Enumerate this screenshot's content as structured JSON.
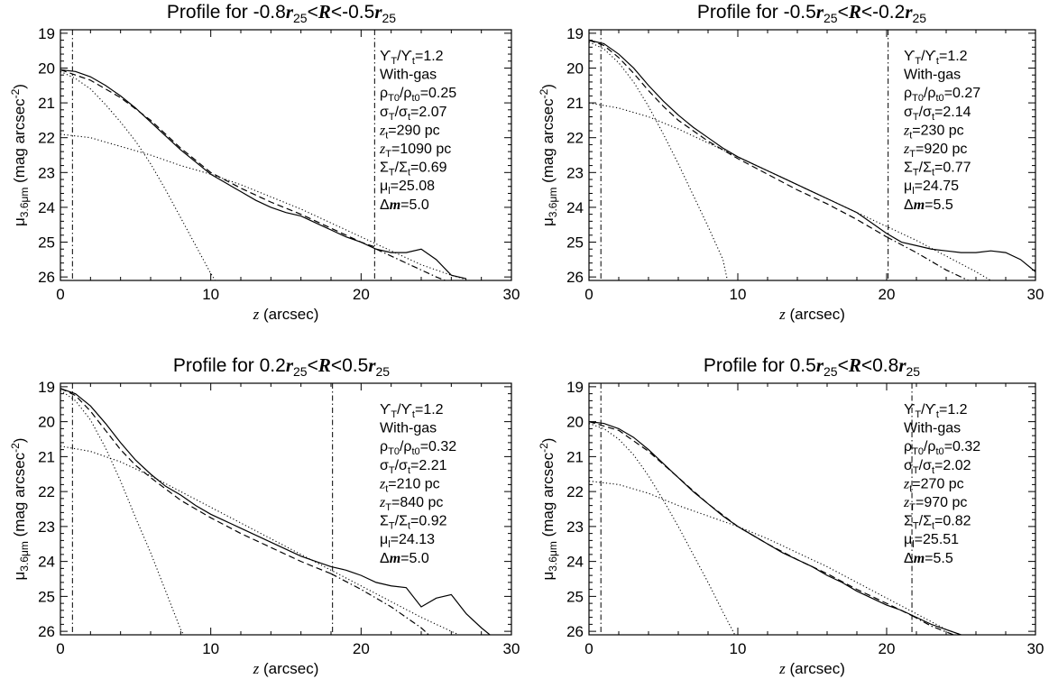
{
  "chart_data": [
    {
      "type": "line",
      "title": "Profile for -0.8r25<R<-0.5r25",
      "title_parts": [
        "Profile for -0.8",
        "r",
        "25",
        "<",
        "R",
        "<-0.5",
        "r",
        "25"
      ],
      "xlabel": "z (arcsec)",
      "xlabel_parts": [
        "z",
        " (arcsec)"
      ],
      "ylabel": "μ3.6μm (mag arcsec-2)",
      "ylabel_parts": [
        "μ",
        "3.6μm",
        " (mag arcsec",
        "-2",
        ")"
      ],
      "xlim": [
        0,
        30
      ],
      "ylim": [
        26.1,
        18.9
      ],
      "y_inverted": true,
      "xticks": [
        "0",
        "10",
        "20",
        "30"
      ],
      "yticks": [
        "19",
        "20",
        "21",
        "22",
        "23",
        "24",
        "25",
        "26"
      ],
      "vlines": [
        0.8,
        20.9
      ],
      "annotations": [
        {
          "parts": [
            "ϒ",
            "T",
            "/ϒ",
            "t",
            "=1.2"
          ]
        },
        {
          "parts": [
            "With-gas"
          ]
        },
        {
          "parts": [
            "ρ",
            "T0",
            "/ρ",
            "t0",
            "=0.25"
          ]
        },
        {
          "parts": [
            "σ",
            "T",
            "/σ",
            "t",
            "=2.07"
          ]
        },
        {
          "parts": [
            "z",
            "t",
            "=290 pc"
          ]
        },
        {
          "parts": [
            "z",
            "T",
            "=1090 pc"
          ]
        },
        {
          "parts": [
            "Σ",
            "T",
            "/Σ",
            "t",
            "=0.69"
          ]
        },
        {
          "parts": [
            "μ",
            "l",
            "=25.08"
          ]
        },
        {
          "parts": [
            "Δ",
            "m",
            "=5.0"
          ]
        }
      ],
      "series": [
        {
          "style": "solid",
          "x": [
            0,
            1,
            2,
            3,
            4,
            5,
            6,
            7,
            8,
            9,
            10,
            11,
            12,
            13,
            14,
            15,
            16,
            17,
            18,
            19,
            20,
            21,
            22,
            23,
            24,
            25,
            26,
            27
          ],
          "y": [
            20.05,
            20.1,
            20.25,
            20.5,
            20.8,
            21.15,
            21.55,
            21.95,
            22.35,
            22.7,
            23.05,
            23.3,
            23.55,
            23.8,
            24.0,
            24.15,
            24.25,
            24.45,
            24.65,
            24.85,
            25.0,
            25.2,
            25.3,
            25.3,
            25.2,
            25.5,
            25.95,
            26.05
          ]
        },
        {
          "style": "dashed",
          "x": [
            0,
            2,
            4,
            6,
            8,
            10,
            12,
            14,
            16,
            18,
            20,
            21
          ],
          "y": [
            20.05,
            20.35,
            20.85,
            21.5,
            22.3,
            23.0,
            23.45,
            23.85,
            24.2,
            24.6,
            25.0,
            25.15
          ]
        },
        {
          "style": "dashdot",
          "x": [
            21,
            23,
            25,
            25.6
          ],
          "y": [
            25.2,
            25.6,
            26.0,
            26.1
          ]
        },
        {
          "style": "dotted",
          "x": [
            0,
            1,
            2,
            3,
            4,
            5,
            6,
            7,
            8,
            9,
            10,
            10.3
          ],
          "y": [
            20.1,
            20.3,
            20.6,
            21.05,
            21.55,
            22.1,
            22.75,
            23.5,
            24.3,
            25.1,
            25.9,
            26.1
          ]
        },
        {
          "style": "dotted",
          "x": [
            0,
            2,
            4,
            6,
            8,
            10,
            12,
            14,
            16,
            18,
            20,
            22,
            24,
            26,
            27.2
          ],
          "y": [
            21.9,
            22.0,
            22.25,
            22.5,
            22.8,
            23.05,
            23.35,
            23.7,
            24.05,
            24.45,
            24.85,
            25.25,
            25.65,
            25.95,
            26.1
          ]
        }
      ]
    },
    {
      "type": "line",
      "title": "Profile for -0.5r25<R<-0.2r25",
      "title_parts": [
        "Profile for -0.5",
        "r",
        "25",
        "<",
        "R",
        "<-0.2",
        "r",
        "25"
      ],
      "xlabel": "z (arcsec)",
      "xlabel_parts": [
        "z",
        " (arcsec)"
      ],
      "ylabel": "μ3.6μm (mag arcsec-2)",
      "ylabel_parts": [
        "μ",
        "3.6μm",
        " (mag arcsec",
        "-2",
        ")"
      ],
      "xlim": [
        0,
        30
      ],
      "ylim": [
        26.1,
        18.9
      ],
      "y_inverted": true,
      "xticks": [
        "0",
        "10",
        "20",
        "30"
      ],
      "yticks": [
        "19",
        "20",
        "21",
        "22",
        "23",
        "24",
        "25",
        "26"
      ],
      "vlines": [
        0.8,
        20.1
      ],
      "annotations": [
        {
          "parts": [
            "ϒ",
            "T",
            "/ϒ",
            "t",
            "=1.2"
          ]
        },
        {
          "parts": [
            "With-gas"
          ]
        },
        {
          "parts": [
            "ρ",
            "T0",
            "/ρ",
            "t0",
            "=0.27"
          ]
        },
        {
          "parts": [
            "σ",
            "T",
            "/σ",
            "t",
            "=2.14"
          ]
        },
        {
          "parts": [
            "z",
            "t",
            "=230 pc"
          ]
        },
        {
          "parts": [
            "z",
            "T",
            "=920 pc"
          ]
        },
        {
          "parts": [
            "Σ",
            "T",
            "/Σ",
            "t",
            "=0.77"
          ]
        },
        {
          "parts": [
            "μ",
            "l",
            "=24.75"
          ]
        },
        {
          "parts": [
            "Δ",
            "m",
            "=5.5"
          ]
        }
      ],
      "series": [
        {
          "style": "solid",
          "x": [
            0,
            1,
            2,
            3,
            4,
            5,
            6,
            7,
            8,
            9,
            10,
            11,
            12,
            13,
            14,
            15,
            16,
            17,
            18,
            19,
            20,
            21,
            22,
            23,
            24,
            25,
            26,
            27,
            28,
            29,
            30
          ],
          "y": [
            19.2,
            19.3,
            19.6,
            20.0,
            20.5,
            20.95,
            21.35,
            21.7,
            22.0,
            22.3,
            22.55,
            22.75,
            22.95,
            23.15,
            23.35,
            23.55,
            23.75,
            23.95,
            24.15,
            24.45,
            24.75,
            25.0,
            25.1,
            25.2,
            25.25,
            25.3,
            25.3,
            25.25,
            25.3,
            25.5,
            25.85
          ]
        },
        {
          "style": "dashed",
          "x": [
            0,
            1,
            2,
            3,
            4,
            5,
            6,
            8,
            10,
            12,
            14,
            16,
            18,
            20
          ],
          "y": [
            19.2,
            19.35,
            19.7,
            20.15,
            20.65,
            21.1,
            21.5,
            22.1,
            22.6,
            23.05,
            23.5,
            23.9,
            24.35,
            24.85
          ]
        },
        {
          "style": "dashdot",
          "x": [
            20,
            22,
            24,
            25.5
          ],
          "y": [
            24.85,
            25.3,
            25.8,
            26.1
          ]
        },
        {
          "style": "dotted",
          "x": [
            0,
            1,
            2,
            3,
            4,
            5,
            6,
            7,
            8,
            9,
            9.3
          ],
          "y": [
            19.25,
            19.45,
            19.85,
            20.4,
            21.1,
            21.9,
            22.75,
            23.65,
            24.55,
            25.5,
            26.1
          ]
        },
        {
          "style": "dotted",
          "x": [
            0,
            2,
            4,
            6,
            8,
            10,
            12,
            14,
            16,
            18,
            20,
            22,
            24,
            26,
            27
          ],
          "y": [
            21.0,
            21.15,
            21.4,
            21.75,
            22.15,
            22.55,
            22.95,
            23.35,
            23.75,
            24.15,
            24.55,
            24.95,
            25.4,
            25.85,
            26.1
          ]
        }
      ]
    },
    {
      "type": "line",
      "title": "Profile for 0.2r25<R<0.5r25",
      "title_parts": [
        "Profile for 0.2",
        "r",
        "25",
        "<",
        "R",
        "<0.5",
        "r",
        "25"
      ],
      "xlabel": "z (arcsec)",
      "xlabel_parts": [
        "z",
        " (arcsec)"
      ],
      "ylabel": "μ3.6μm (mag arcsec-2)",
      "ylabel_parts": [
        "μ",
        "3.6μm",
        " (mag arcsec",
        "-2",
        ")"
      ],
      "xlim": [
        0,
        30
      ],
      "ylim": [
        26.1,
        18.9
      ],
      "y_inverted": true,
      "xticks": [
        "0",
        "10",
        "20",
        "30"
      ],
      "yticks": [
        "19",
        "20",
        "21",
        "22",
        "23",
        "24",
        "25",
        "26"
      ],
      "vlines": [
        0.8,
        18.1
      ],
      "annotations": [
        {
          "parts": [
            "ϒ",
            "T",
            "/ϒ",
            "t",
            "=1.2"
          ]
        },
        {
          "parts": [
            "With-gas"
          ]
        },
        {
          "parts": [
            "ρ",
            "T0",
            "/ρ",
            "t0",
            "=0.32"
          ]
        },
        {
          "parts": [
            "σ",
            "T",
            "/σ",
            "t",
            "=2.21"
          ]
        },
        {
          "parts": [
            "z",
            "t",
            "=210 pc"
          ]
        },
        {
          "parts": [
            "z",
            "T",
            "=840 pc"
          ]
        },
        {
          "parts": [
            "Σ",
            "T",
            "/Σ",
            "t",
            "=0.92"
          ]
        },
        {
          "parts": [
            "μ",
            "l",
            "=24.13"
          ]
        },
        {
          "parts": [
            "Δ",
            "m",
            "=5.0"
          ]
        }
      ],
      "series": [
        {
          "style": "solid",
          "x": [
            0,
            1,
            2,
            3,
            4,
            5,
            6,
            7,
            8,
            9,
            10,
            11,
            12,
            13,
            14,
            15,
            16,
            17,
            18,
            19,
            20,
            21,
            22,
            23,
            24,
            25,
            26,
            27,
            28,
            29
          ],
          "y": [
            19.05,
            19.2,
            19.55,
            20.05,
            20.6,
            21.1,
            21.5,
            21.85,
            22.1,
            22.4,
            22.65,
            22.85,
            23.05,
            23.25,
            23.45,
            23.65,
            23.85,
            24.0,
            24.15,
            24.25,
            24.4,
            24.6,
            24.7,
            24.75,
            25.3,
            25.05,
            24.95,
            25.5,
            25.9,
            26.25
          ]
        },
        {
          "style": "dashed",
          "x": [
            0,
            1,
            2,
            3,
            4,
            5,
            6,
            8,
            10,
            12,
            14,
            16,
            18
          ],
          "y": [
            19.05,
            19.25,
            19.7,
            20.25,
            20.8,
            21.25,
            21.6,
            22.25,
            22.75,
            23.2,
            23.6,
            24.0,
            24.35
          ]
        },
        {
          "style": "dashdot",
          "x": [
            18,
            20,
            22,
            24,
            24.5
          ],
          "y": [
            24.35,
            24.8,
            25.3,
            25.9,
            26.1
          ]
        },
        {
          "style": "dotted",
          "x": [
            0,
            1,
            2,
            3,
            4,
            5,
            6,
            7,
            8,
            8.2
          ],
          "y": [
            19.1,
            19.4,
            19.95,
            20.75,
            21.7,
            22.75,
            23.75,
            24.85,
            25.95,
            26.1
          ]
        },
        {
          "style": "dotted",
          "x": [
            0,
            2,
            4,
            6,
            8,
            10,
            12,
            14,
            16,
            18,
            20,
            22,
            24,
            26,
            26.5
          ],
          "y": [
            20.7,
            20.85,
            21.15,
            21.55,
            22.0,
            22.45,
            22.9,
            23.35,
            23.8,
            24.25,
            24.7,
            25.15,
            25.6,
            26.0,
            26.1
          ]
        }
      ]
    },
    {
      "type": "line",
      "title": "Profile for 0.5r25<R<0.8r25",
      "title_parts": [
        "Profile for 0.5",
        "r",
        "25",
        "<",
        "R",
        "<0.8",
        "r",
        "25"
      ],
      "xlabel": "z (arcsec)",
      "xlabel_parts": [
        "z",
        " (arcsec)"
      ],
      "ylabel": "μ3.6μm (mag arcsec-2)",
      "ylabel_parts": [
        "μ",
        "3.6μm",
        " (mag arcsec",
        "-2",
        ")"
      ],
      "xlim": [
        0,
        30
      ],
      "ylim": [
        26.1,
        18.9
      ],
      "y_inverted": true,
      "xticks": [
        "0",
        "10",
        "20",
        "30"
      ],
      "yticks": [
        "19",
        "20",
        "21",
        "22",
        "23",
        "24",
        "25",
        "26"
      ],
      "vlines": [
        0.8,
        21.7
      ],
      "annotations": [
        {
          "parts": [
            "ϒ",
            "T",
            "/ϒ",
            "t",
            "=1.2"
          ]
        },
        {
          "parts": [
            "With-gas"
          ]
        },
        {
          "parts": [
            "ρ",
            "T0",
            "/ρ",
            "t0",
            "=0.32"
          ]
        },
        {
          "parts": [
            "σ",
            "T",
            "/σ",
            "t",
            "=2.02"
          ]
        },
        {
          "parts": [
            "z",
            "t",
            "=270 pc"
          ]
        },
        {
          "parts": [
            "z",
            "T",
            "=970 pc"
          ]
        },
        {
          "parts": [
            "Σ",
            "T",
            "/Σ",
            "t",
            "=0.82"
          ]
        },
        {
          "parts": [
            "μ",
            "l",
            "=25.51"
          ]
        },
        {
          "parts": [
            "Δ",
            "m",
            "=5.5"
          ]
        }
      ],
      "series": [
        {
          "style": "solid",
          "x": [
            0,
            1,
            2,
            3,
            4,
            5,
            6,
            7,
            8,
            9,
            10,
            11,
            12,
            13,
            14,
            15,
            16,
            17,
            18,
            19,
            20,
            21,
            22,
            23,
            24,
            25
          ],
          "y": [
            20.0,
            20.05,
            20.2,
            20.45,
            20.8,
            21.2,
            21.6,
            22.0,
            22.35,
            22.7,
            23.0,
            23.25,
            23.5,
            23.75,
            23.95,
            24.15,
            24.4,
            24.6,
            24.85,
            25.05,
            25.25,
            25.4,
            25.6,
            25.8,
            25.95,
            26.1
          ]
        },
        {
          "style": "dashed",
          "x": [
            0,
            2,
            4,
            6,
            8,
            10,
            12,
            14,
            16,
            18,
            20,
            21.7
          ],
          "y": [
            20.0,
            20.25,
            20.85,
            21.6,
            22.35,
            23.0,
            23.5,
            23.95,
            24.35,
            24.8,
            25.2,
            25.55
          ]
        },
        {
          "style": "dashdot",
          "x": [
            21.7,
            23,
            24.5
          ],
          "y": [
            25.55,
            25.85,
            26.1
          ]
        },
        {
          "style": "dotted",
          "x": [
            0,
            1,
            2,
            3,
            4,
            5,
            6,
            7,
            8,
            9,
            9.8
          ],
          "y": [
            20.05,
            20.2,
            20.5,
            20.95,
            21.55,
            22.25,
            23.0,
            23.8,
            24.6,
            25.45,
            26.1
          ]
        },
        {
          "style": "dotted",
          "x": [
            0,
            2,
            4,
            6,
            8,
            10,
            12,
            14,
            16,
            18,
            20,
            22,
            24,
            25
          ],
          "y": [
            21.7,
            21.8,
            22.05,
            22.4,
            22.7,
            23.0,
            23.35,
            23.75,
            24.15,
            24.6,
            25.05,
            25.5,
            25.95,
            26.1
          ]
        }
      ]
    }
  ]
}
